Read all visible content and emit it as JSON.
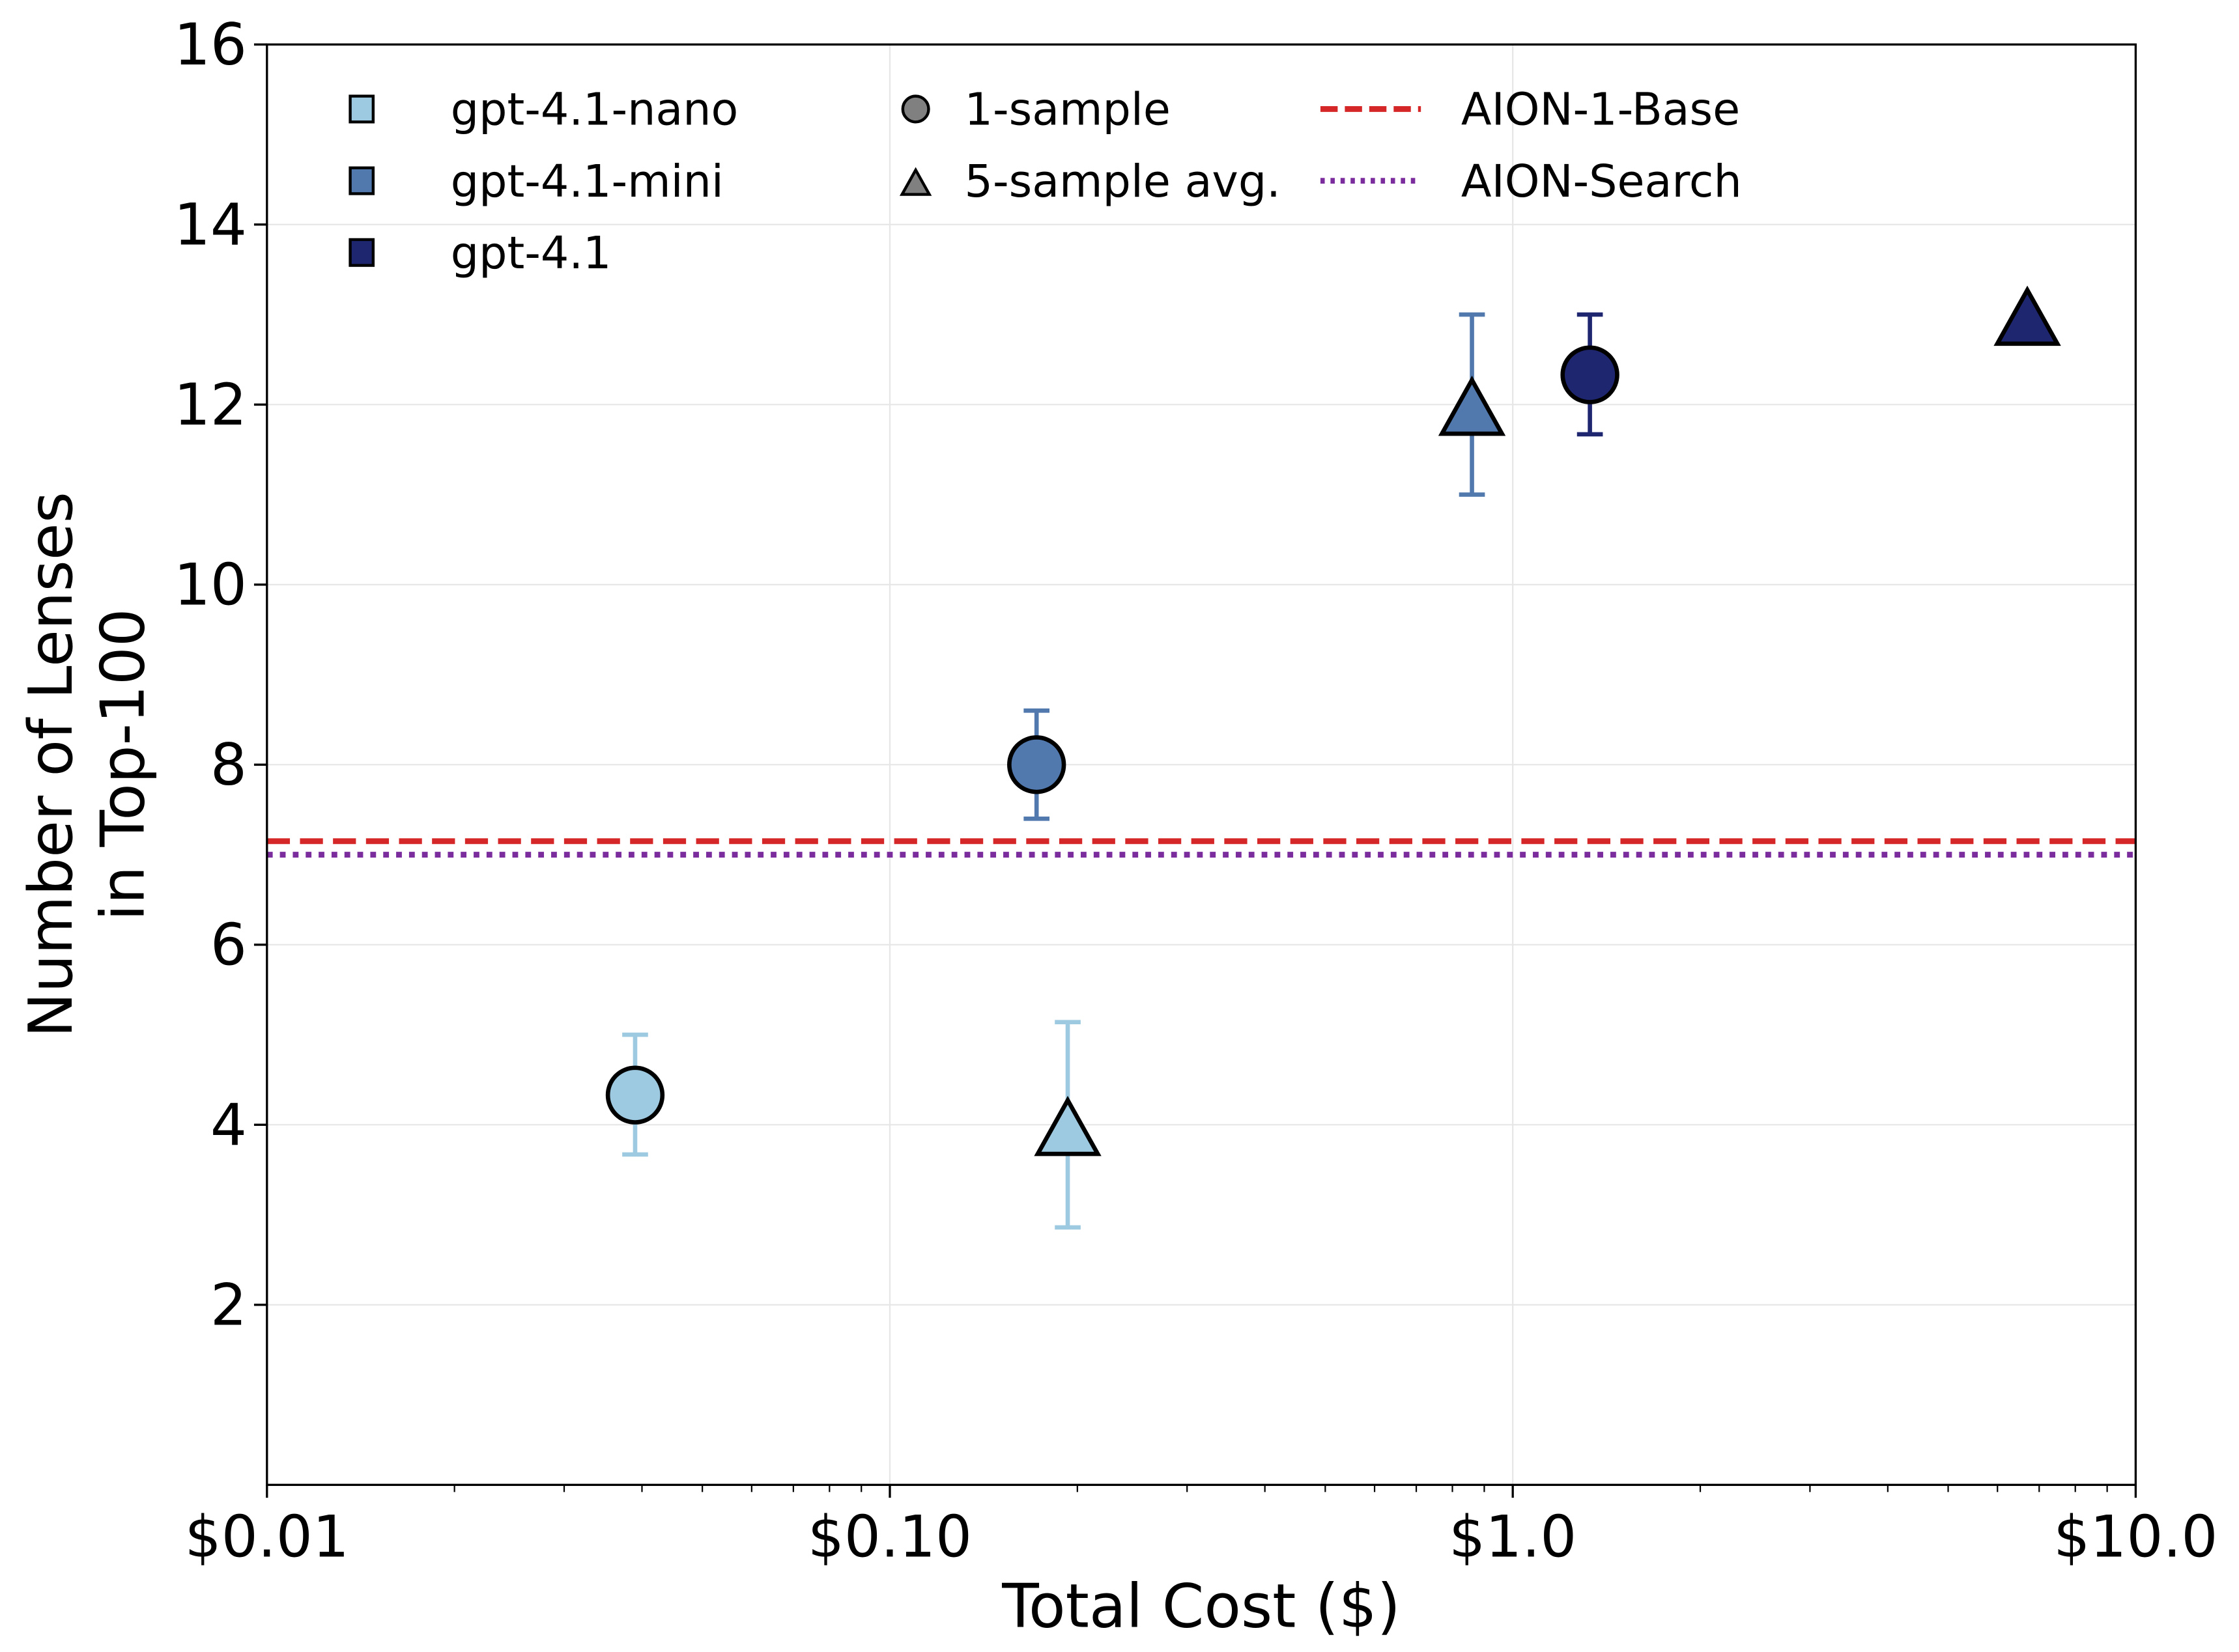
{
  "chart_data": {
    "type": "scatter",
    "title": "",
    "xlabel": "Total Cost ($)",
    "ylabel": [
      "Number of Lenses",
      "in Top-100"
    ],
    "x_scale": "log",
    "xlim": [
      0.01,
      10.0
    ],
    "ylim": [
      0,
      16
    ],
    "grid": true,
    "x_ticks": [
      {
        "value": 0.01,
        "label": "$0.01"
      },
      {
        "value": 0.1,
        "label": "$0.10"
      },
      {
        "value": 1.0,
        "label": "$1.0"
      },
      {
        "value": 10.0,
        "label": "$10.0"
      }
    ],
    "y_ticks": [
      {
        "value": 2,
        "label": "2"
      },
      {
        "value": 4,
        "label": "4"
      },
      {
        "value": 6,
        "label": "6"
      },
      {
        "value": 8,
        "label": "8"
      },
      {
        "value": 10,
        "label": "10"
      },
      {
        "value": 12,
        "label": "12"
      },
      {
        "value": 14,
        "label": "14"
      },
      {
        "value": 16,
        "label": "16"
      }
    ],
    "legend_placement": "top",
    "series": [
      {
        "name": "gpt-4.1-nano",
        "color": "#9ecae1",
        "points": [
          {
            "marker": "circle",
            "x": 0.039,
            "y": 4.33,
            "err_low": 3.67,
            "err_high": 5.0
          },
          {
            "marker": "triangle",
            "x": 0.193,
            "y": 4.0,
            "err_low": 2.86,
            "err_high": 5.14
          }
        ]
      },
      {
        "name": "gpt-4.1-mini",
        "color": "#5179ae",
        "points": [
          {
            "marker": "circle",
            "x": 0.172,
            "y": 8.0,
            "err_low": 7.4,
            "err_high": 8.6
          },
          {
            "marker": "triangle",
            "x": 0.86,
            "y": 12.0,
            "err_low": 11.0,
            "err_high": 13.0
          }
        ]
      },
      {
        "name": "gpt-4.1",
        "color": "#1f2670",
        "points": [
          {
            "marker": "circle",
            "x": 1.33,
            "y": 12.33,
            "err_low": 11.67,
            "err_high": 13.0
          },
          {
            "marker": "triangle",
            "x": 6.7,
            "y": 13.0
          }
        ]
      }
    ],
    "marker_legend": [
      {
        "marker": "circle",
        "label": "1-sample"
      },
      {
        "marker": "triangle",
        "label": "5-sample avg."
      }
    ],
    "reference_lines": [
      {
        "name": "AION-1-Base",
        "y": 7.15,
        "color": "#d62728",
        "style": "dashed"
      },
      {
        "name": "AION-Search",
        "y": 7.0,
        "color": "#7b2d9e",
        "style": "dotted"
      }
    ]
  }
}
